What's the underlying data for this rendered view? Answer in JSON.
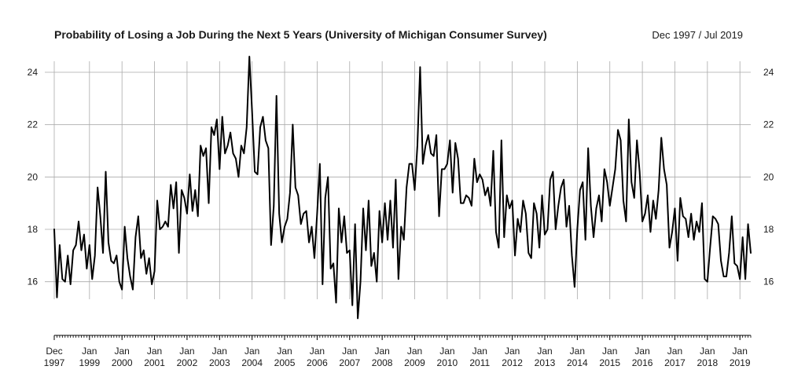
{
  "chart_data": {
    "type": "line",
    "title": "Probability of Losing a Job During the Next 5 Years (University of Michigan Consumer Survey)",
    "date_range": "Dec 1997 / Jul 2019",
    "xlabel": "",
    "ylabel": "",
    "ylim": [
      14.4,
      24.6
    ],
    "yticks": [
      16,
      18,
      20,
      22,
      24
    ],
    "grid": true,
    "x_ticks": [
      {
        "month": "Dec",
        "year": "1997"
      },
      {
        "month": "Jan",
        "year": "1999"
      },
      {
        "month": "Jan",
        "year": "2000"
      },
      {
        "month": "Jan",
        "year": "2001"
      },
      {
        "month": "Jan",
        "year": "2002"
      },
      {
        "month": "Jan",
        "year": "2003"
      },
      {
        "month": "Jan",
        "year": "2004"
      },
      {
        "month": "Jan",
        "year": "2005"
      },
      {
        "month": "Jan",
        "year": "2006"
      },
      {
        "month": "Jan",
        "year": "2007"
      },
      {
        "month": "Jan",
        "year": "2008"
      },
      {
        "month": "Jan",
        "year": "2009"
      },
      {
        "month": "Jan",
        "year": "2010"
      },
      {
        "month": "Jan",
        "year": "2011"
      },
      {
        "month": "Jan",
        "year": "2012"
      },
      {
        "month": "Jan",
        "year": "2013"
      },
      {
        "month": "Jan",
        "year": "2014"
      },
      {
        "month": "Jan",
        "year": "2015"
      },
      {
        "month": "Jan",
        "year": "2016"
      },
      {
        "month": "Jan",
        "year": "2017"
      },
      {
        "month": "Jan",
        "year": "2018"
      },
      {
        "month": "Jan",
        "year": "2019"
      }
    ],
    "start": "1997-12",
    "frequency": "monthly",
    "values": [
      18.0,
      15.4,
      17.4,
      16.1,
      16.0,
      17.0,
      15.9,
      17.2,
      17.4,
      18.3,
      17.2,
      17.8,
      16.5,
      17.4,
      16.1,
      17.0,
      19.6,
      18.5,
      17.1,
      20.2,
      17.5,
      16.8,
      16.7,
      17.0,
      16.0,
      15.7,
      18.1,
      16.9,
      16.2,
      15.7,
      17.7,
      18.5,
      16.9,
      17.2,
      16.3,
      16.9,
      15.9,
      16.4,
      19.1,
      18.0,
      18.1,
      18.3,
      18.1,
      19.7,
      18.8,
      19.8,
      17.1,
      19.5,
      19.2,
      18.6,
      20.1,
      18.7,
      19.5,
      18.5,
      21.2,
      20.8,
      21.1,
      19.0,
      21.9,
      21.6,
      22.2,
      20.3,
      22.3,
      20.9,
      21.2,
      21.7,
      20.9,
      20.7,
      20.0,
      21.2,
      20.9,
      21.9,
      24.6,
      22.5,
      20.2,
      20.1,
      21.9,
      22.3,
      21.4,
      21.1,
      17.4,
      18.9,
      23.1,
      18.6,
      17.5,
      18.1,
      18.4,
      19.4,
      22.0,
      19.6,
      19.3,
      18.2,
      18.6,
      18.7,
      17.5,
      18.1,
      16.9,
      18.6,
      20.5,
      15.9,
      19.2,
      20.0,
      16.5,
      16.7,
      15.2,
      18.8,
      17.5,
      18.5,
      17.1,
      17.2,
      15.1,
      18.2,
      14.6,
      16.0,
      18.8,
      17.2,
      19.1,
      16.6,
      17.1,
      16.0,
      18.7,
      17.5,
      19.0,
      17.6,
      19.1,
      17.3,
      19.9,
      16.1,
      18.1,
      17.6,
      19.6,
      20.5,
      20.5,
      19.5,
      21.2,
      24.2,
      20.5,
      21.2,
      21.6,
      20.9,
      20.8,
      21.6,
      18.5,
      20.3,
      20.3,
      20.5,
      21.4,
      19.4,
      21.3,
      20.7,
      19.0,
      19.0,
      19.3,
      19.2,
      18.9,
      20.7,
      19.8,
      20.1,
      19.9,
      19.3,
      19.6,
      18.9,
      21.0,
      17.9,
      17.3,
      21.4,
      17.7,
      19.3,
      18.8,
      19.1,
      17.0,
      18.4,
      17.9,
      19.1,
      18.6,
      17.1,
      16.9,
      19.0,
      18.6,
      17.3,
      19.3,
      17.8,
      18.0,
      19.9,
      20.2,
      18.0,
      18.9,
      19.6,
      19.9,
      18.1,
      18.9,
      17.0,
      15.8,
      18.0,
      19.5,
      19.8,
      17.6,
      21.1,
      18.9,
      17.7,
      18.8,
      19.3,
      18.3,
      20.3,
      19.8,
      18.9,
      19.6,
      20.3,
      21.8,
      21.4,
      19.1,
      18.3,
      22.2,
      19.8,
      19.2,
      21.4,
      20.2,
      18.3,
      18.6,
      19.3,
      17.9,
      19.1,
      18.4,
      19.5,
      21.5,
      20.3,
      19.7,
      17.3,
      17.9,
      18.8,
      16.8,
      19.2,
      18.5,
      18.4,
      17.7,
      18.6,
      17.6,
      18.3,
      17.9,
      19.0,
      16.1,
      16.0,
      17.3,
      18.5,
      18.4,
      18.2,
      16.8,
      16.2,
      16.2,
      17.1,
      18.5,
      16.7,
      16.6,
      16.1,
      17.7,
      16.1,
      18.2,
      17.1
    ],
    "series_color": "#000000",
    "grid_color": "#aaaaaa"
  }
}
